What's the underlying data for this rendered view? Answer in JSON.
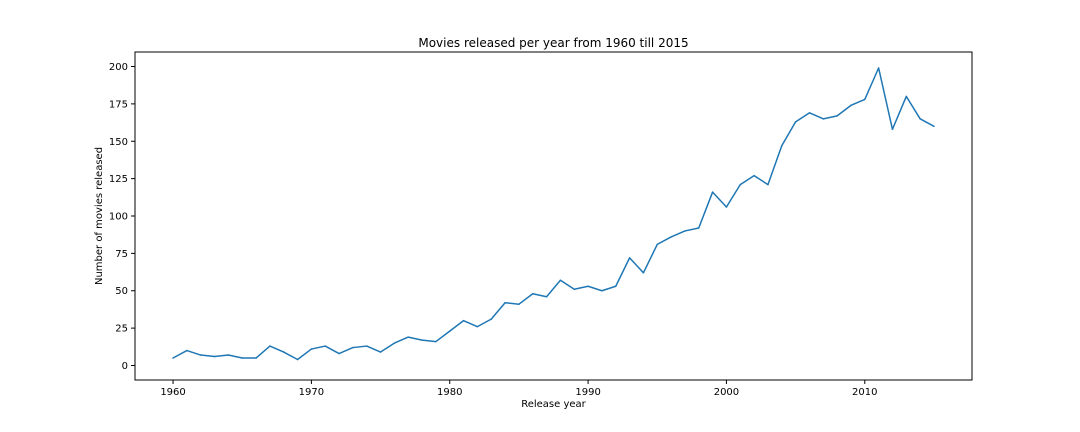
{
  "chart_data": {
    "type": "line",
    "title": "Movies released per year from 1960 till 2015",
    "xlabel": "Release year",
    "ylabel": "Number of movies released",
    "xlim": [
      1957.25,
      2017.75
    ],
    "ylim": [
      -9.7,
      209.7
    ],
    "xticks": [
      1960,
      1970,
      1980,
      1990,
      2000,
      2010
    ],
    "yticks": [
      0,
      25,
      50,
      75,
      100,
      125,
      150,
      175,
      200
    ],
    "grid": false,
    "line_color": "#1f77b4",
    "x": [
      1960,
      1961,
      1962,
      1963,
      1964,
      1965,
      1966,
      1967,
      1968,
      1969,
      1970,
      1971,
      1972,
      1973,
      1974,
      1975,
      1976,
      1977,
      1978,
      1979,
      1980,
      1981,
      1982,
      1983,
      1984,
      1985,
      1986,
      1987,
      1988,
      1989,
      1990,
      1991,
      1992,
      1993,
      1994,
      1995,
      1996,
      1997,
      1998,
      1999,
      2000,
      2001,
      2002,
      2003,
      2004,
      2005,
      2006,
      2007,
      2008,
      2009,
      2010,
      2011,
      2012,
      2013,
      2014,
      2015
    ],
    "series": [
      {
        "values": [
          5,
          10,
          7,
          6,
          7,
          5,
          5,
          13,
          9,
          4,
          11,
          13,
          8,
          12,
          13,
          9,
          15,
          19,
          17,
          16,
          23,
          30,
          26,
          31,
          42,
          41,
          48,
          46,
          57,
          51,
          53,
          50,
          53,
          72,
          62,
          81,
          86,
          90,
          92,
          116,
          106,
          121,
          127,
          121,
          147,
          163,
          169,
          165,
          167,
          174,
          178,
          199,
          158,
          180,
          165,
          160
        ]
      }
    ]
  }
}
